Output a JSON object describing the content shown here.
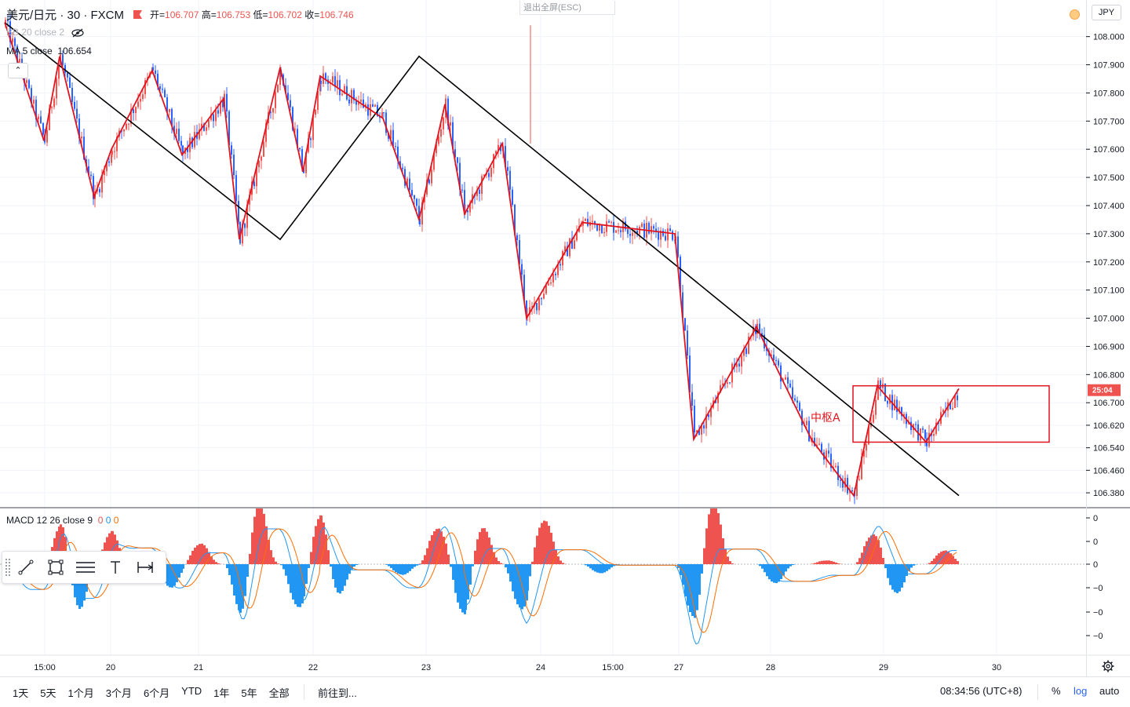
{
  "header": {
    "symbol": "美元/日元 · 30 · FXCM",
    "open_label": "开=",
    "open": "106.707",
    "high_label": "高=",
    "high": "106.753",
    "low_label": "低=",
    "low": "106.702",
    "close_label": "收=",
    "close": "106.746",
    "indicator_bb": "BB 20 close 2",
    "indicator_ma_label": "MA 5 close",
    "indicator_ma_value": "106.654",
    "fullscreen_exit": "退出全屏(ESC)",
    "currency": "JPY"
  },
  "macd": {
    "label": "MACD 12 26 close 9",
    "v1": "0",
    "v2": "0",
    "v3": "0",
    "colors": {
      "macd_line": "#2196f3",
      "signal_line": "#ff6d00",
      "hist_pos": "#ef5350",
      "hist_neg": "#2196f3"
    }
  },
  "price_axis": {
    "labels": [
      "108.000",
      "107.900",
      "107.800",
      "107.700",
      "107.600",
      "107.500",
      "107.400",
      "107.300",
      "107.200",
      "107.100",
      "107.000",
      "106.900",
      "106.800",
      "106.700",
      "106.620",
      "106.540",
      "106.460",
      "106.380"
    ],
    "countdown": "25:04"
  },
  "macd_axis": {
    "labels": [
      "0",
      "0",
      "0",
      "−0",
      "−0",
      "−0"
    ]
  },
  "time_axis": {
    "labels": [
      "15:00",
      "20",
      "21",
      "22",
      "23",
      "24",
      "15:00",
      "27",
      "28",
      "29",
      "30"
    ]
  },
  "annotation": {
    "zhongshu": "中枢A"
  },
  "bottom_bar": {
    "ranges": [
      "1天",
      "5天",
      "1个月",
      "3个月",
      "6个月",
      "YTD",
      "1年",
      "5年",
      "全部"
    ],
    "goto": "前往到...",
    "clock": "08:34:56 (UTC+8)",
    "percent": "%",
    "log": "log",
    "auto": "auto"
  },
  "colors": {
    "up": "#ef5350",
    "down": "#2962ff",
    "zigzag": "#e0141e",
    "trend": "#000000",
    "box": "#e0141e"
  },
  "chart_data": {
    "type": "line",
    "title": "美元/日元 · 30 · FXCM",
    "ylim": [
      106.33,
      108.13
    ],
    "y_scale": "log",
    "x_tick_labels": [
      "15:00",
      "20",
      "21",
      "22",
      "23",
      "24",
      "15:00",
      "27",
      "28",
      "29",
      "30"
    ],
    "zigzag_red": {
      "values": [
        108.05,
        107.63,
        107.93,
        107.43,
        107.6,
        107.88,
        107.58,
        107.78,
        107.28,
        107.89,
        107.52,
        107.86,
        107.71,
        107.35,
        107.76,
        107.37,
        107.62,
        107.0,
        107.34,
        107.3,
        106.57,
        106.97,
        106.57,
        106.37,
        106.76,
        106.56,
        106.75
      ]
    },
    "trend_black": {
      "values": [
        108.05,
        107.28,
        107.93,
        106.37
      ]
    },
    "zhongshu_box": {
      "label": "中枢A",
      "upper": 106.76,
      "lower": 106.56
    },
    "last_price": 106.746,
    "macd": {
      "name": "MACD 12 26 close 9",
      "levels": [
        "0",
        "0",
        "0",
        "−0",
        "−0",
        "−0"
      ]
    }
  }
}
